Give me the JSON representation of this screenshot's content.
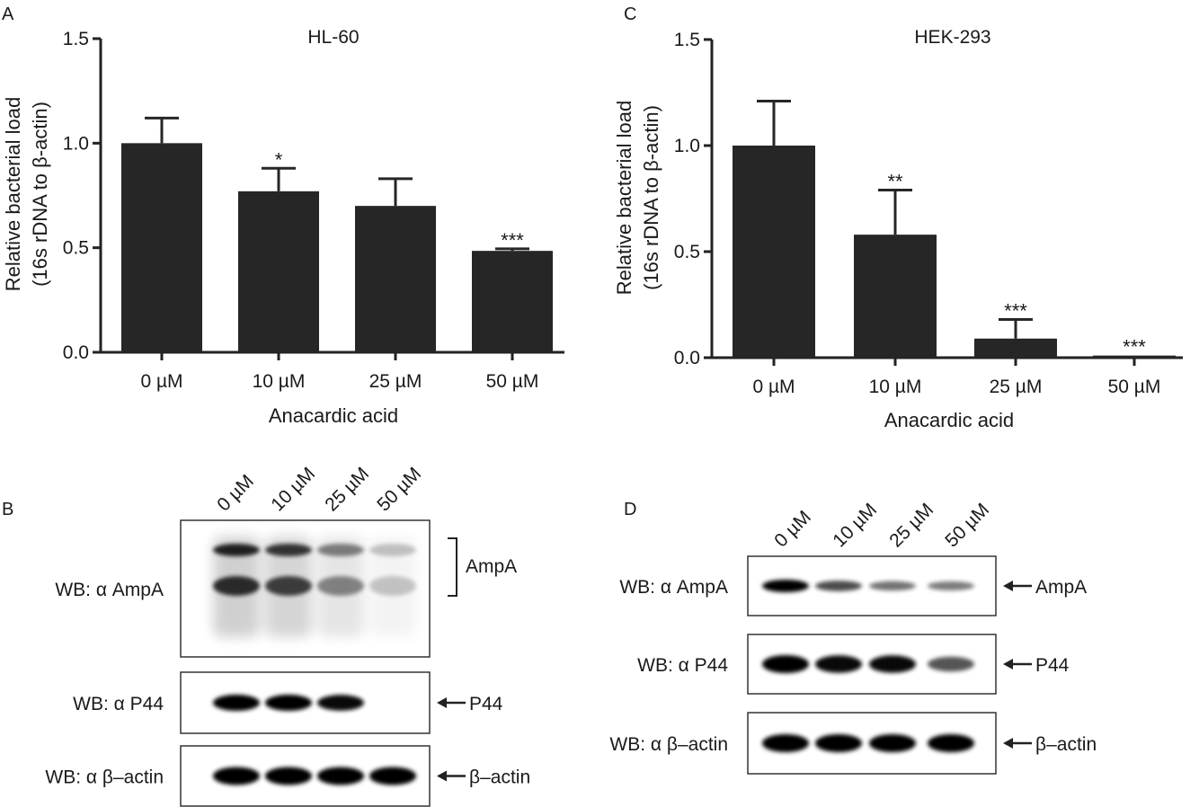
{
  "panels": {
    "a": "A",
    "b": "B",
    "c": "C",
    "d": "D"
  },
  "chart_data": [
    {
      "type": "bar",
      "panel": "A",
      "title": "HL-60",
      "categories": [
        "0 µM",
        "10 µM",
        "25 µM",
        "50 µM"
      ],
      "values": [
        1.0,
        0.77,
        0.7,
        0.485
      ],
      "errors": [
        0.12,
        0.11,
        0.13,
        0.01
      ],
      "significance": [
        "",
        "*",
        "",
        "***"
      ],
      "xlabel": "Anacardic acid",
      "ylabel_line1": "Relative bacterial load",
      "ylabel_line2": "(16s rDNA to β-actin)",
      "ylim": [
        0,
        1.5
      ],
      "yticks": [
        "0.0",
        "0.5",
        "1.0",
        "1.5"
      ],
      "grid": false
    },
    {
      "type": "bar",
      "panel": "C",
      "title": "HEK-293",
      "categories": [
        "0 µM",
        "10 µM",
        "25 µM",
        "50 µM"
      ],
      "values": [
        1.0,
        0.58,
        0.09,
        0.01
      ],
      "errors": [
        0.21,
        0.21,
        0.09,
        0.0
      ],
      "significance": [
        "",
        "**",
        "***",
        "***"
      ],
      "xlabel": "Anacardic acid",
      "ylabel_line1": "Relative bacterial load",
      "ylabel_line2": "(16s rDNA to β-actin)",
      "ylim": [
        0,
        1.5
      ],
      "yticks": [
        "0.0",
        "0.5",
        "1.0",
        "1.5"
      ],
      "grid": false
    }
  ],
  "blots": {
    "b": {
      "lanes": [
        "0 µM",
        "10 µM",
        "25 µM",
        "50 µM"
      ],
      "rows": [
        {
          "label": "WB: α AmpA",
          "target": "AmpA",
          "intensities": [
            1.0,
            0.9,
            0.55,
            0.25
          ]
        },
        {
          "label": "WB: α P44",
          "target": "P44",
          "intensities": [
            1.0,
            1.0,
            0.95,
            0.0
          ]
        },
        {
          "label": "WB: α β–actin",
          "target": "β–actin",
          "intensities": [
            1.0,
            1.0,
            1.0,
            1.0
          ]
        }
      ]
    },
    "d": {
      "lanes": [
        "0 µM",
        "10 µM",
        "25 µM",
        "50 µM"
      ],
      "rows": [
        {
          "label": "WB: α AmpA",
          "target": "AmpA",
          "intensities": [
            1.0,
            0.6,
            0.4,
            0.35
          ]
        },
        {
          "label": "WB: α P44",
          "target": "P44",
          "intensities": [
            1.0,
            0.95,
            0.95,
            0.55
          ]
        },
        {
          "label": "WB: α β–actin",
          "target": "β–actin",
          "intensities": [
            1.0,
            1.0,
            1.0,
            1.0
          ]
        }
      ]
    }
  }
}
